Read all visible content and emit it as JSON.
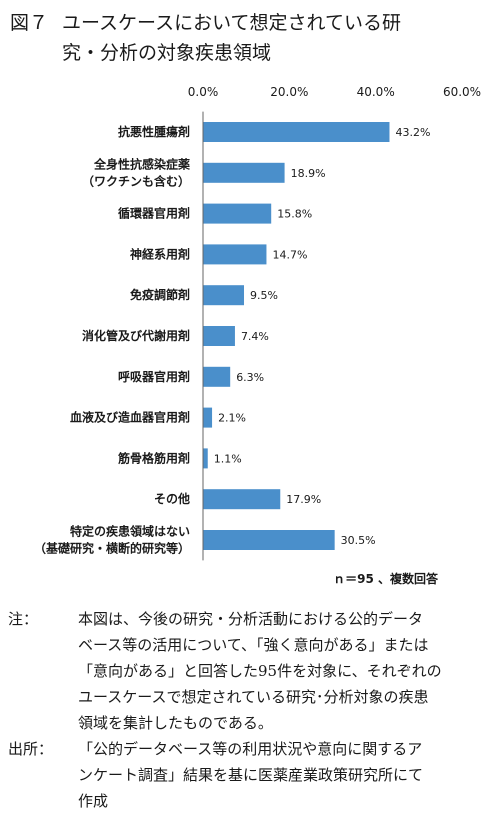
{
  "figure": {
    "number": "図７",
    "title_line1": "ユースケースにおいて想定されている研",
    "title_line2": "究・分析の対象疾患領域"
  },
  "chart_data": {
    "type": "bar",
    "orientation": "horizontal",
    "categories": [
      [
        "抗悪性腫瘍剤"
      ],
      [
        "全身性抗感染症薬",
        "（ワクチンも含む）"
      ],
      [
        "循環器官用剤"
      ],
      [
        "神経系用剤"
      ],
      [
        "免疫調節剤"
      ],
      [
        "消化管及び代謝用剤"
      ],
      [
        "呼吸器官用剤"
      ],
      [
        "血液及び造血器官用剤"
      ],
      [
        "筋骨格筋用剤"
      ],
      [
        "その他"
      ],
      [
        "特定の疾患領域はない",
        "（基礎研究・横断的研究等）"
      ]
    ],
    "values": [
      43.2,
      18.9,
      15.8,
      14.7,
      9.5,
      7.4,
      6.3,
      2.1,
      1.1,
      17.9,
      30.5
    ],
    "value_labels": [
      "43.2%",
      "18.9%",
      "15.8%",
      "14.7%",
      "9.5%",
      "7.4%",
      "6.3%",
      "2.1%",
      "1.1%",
      "17.9%",
      "30.5%"
    ],
    "x_ticks": [
      0,
      20,
      40,
      60
    ],
    "x_tick_labels": [
      "0.0%",
      "20.0%",
      "40.0%",
      "60.0%"
    ],
    "xlim": [
      0,
      60
    ],
    "axis_position": "top",
    "grid": false,
    "bar_color": "#4a8fcb"
  },
  "sample_note": "ｎ＝95 、複数回答",
  "notes": {
    "note_label": "注：",
    "note_lines": [
      "本図は、今後の研究・分析活動における公的データ",
      "ベース等の活用について、「強く意向がある」または",
      "「意向がある」と回答した95件を対象に、それぞれの",
      "ユースケースで想定されている研究･分析対象の疾患",
      "領域を集計したものである。"
    ],
    "source_label": "出所：",
    "source_lines": [
      "「公的データベース等の利用状況や意向に関するア",
      "ンケート調査」結果を基に医薬産業政策研究所にて",
      "作成"
    ]
  }
}
